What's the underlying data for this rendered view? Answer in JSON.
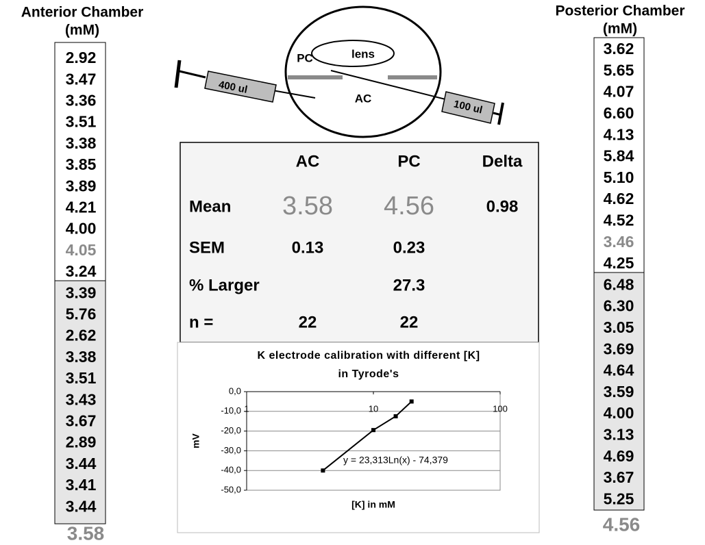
{
  "anterior": {
    "title": "Anterior Chamber",
    "unit": "(mM)",
    "values": [
      "2.92",
      "3.47",
      "3.36",
      "3.51",
      "3.38",
      "3.85",
      "3.89",
      "4.21",
      "4.00",
      "4.05",
      "3.24",
      "3.39",
      "5.76",
      "2.62",
      "3.38",
      "3.51",
      "3.43",
      "3.67",
      "2.89",
      "3.44",
      "3.41",
      "3.44"
    ],
    "mean": "3.58"
  },
  "posterior": {
    "title": "Posterior Chamber",
    "unit": "(mM)",
    "values": [
      "3.62",
      "5.65",
      "4.07",
      "6.60",
      "4.13",
      "5.84",
      "5.10",
      "4.62",
      "4.52",
      "3.46",
      "4.25",
      "6.48",
      "6.30",
      "3.05",
      "3.69",
      "4.64",
      "3.59",
      "4.00",
      "3.13",
      "4.69",
      "3.67",
      "5.25"
    ],
    "mean": "4.56"
  },
  "diagram": {
    "pc": "PC",
    "lens": "lens",
    "ac": "AC",
    "syringe_left": "400 ul",
    "syringe_right": "100 ul"
  },
  "table": {
    "header": [
      "AC",
      "PC",
      "Delta"
    ],
    "rows": [
      [
        "Mean",
        "3.58",
        "4.56",
        "0.98"
      ],
      [
        "SEM",
        "0.13",
        "0.23",
        null
      ],
      [
        "% Larger",
        null,
        "27.3",
        null
      ],
      [
        "n =",
        "22",
        "22",
        null
      ]
    ]
  },
  "chart_data": {
    "type": "line",
    "title": "K electrode calibration with different [K] in Tyrode's",
    "x": [
      4,
      10,
      15,
      20
    ],
    "values": [
      -40,
      -19.5,
      -12.5,
      -5
    ],
    "color": "#000000",
    "xlim": [
      1,
      100
    ],
    "xticks": [
      1,
      10,
      100
    ],
    "x_log": true,
    "ylim": [
      -50,
      0
    ],
    "yticks": [
      {
        "value": 0,
        "label": "0,0"
      },
      {
        "value": -10,
        "label": "-10,0"
      },
      {
        "value": -20,
        "label": "-20,0"
      },
      {
        "value": -30,
        "label": "-30,0"
      },
      {
        "value": -40,
        "label": "-40,0"
      },
      {
        "value": -50,
        "label": "-50,0"
      }
    ],
    "grid": true,
    "x_label": "[K] in mM",
    "y_label": "mV",
    "annotation": "y = 23,313Ln(x) - 74,379"
  }
}
